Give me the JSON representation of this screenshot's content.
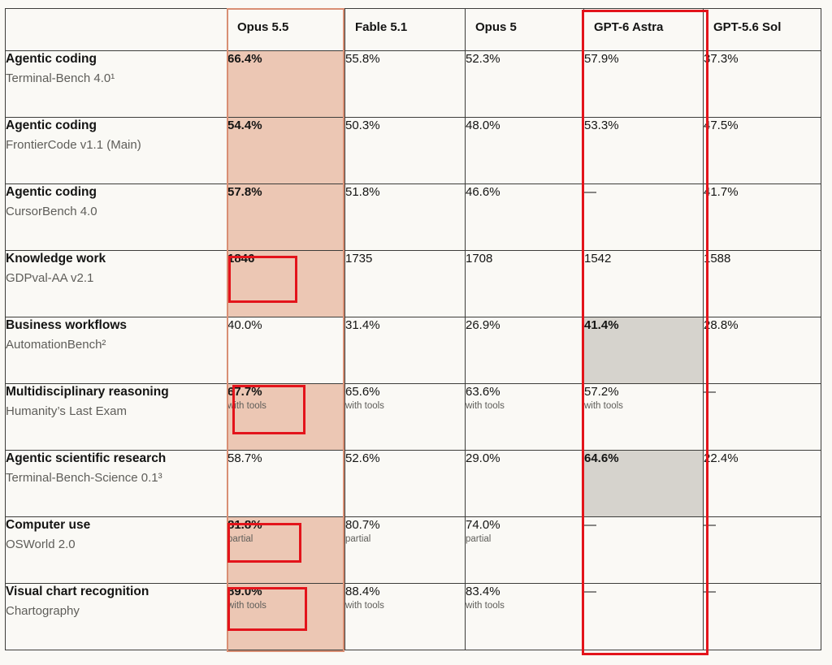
{
  "columns": [
    "Opus 5.5",
    "Fable 5.1",
    "Opus 5",
    "GPT-6 Astra",
    "GPT-5.6 Sol"
  ],
  "rows": [
    {
      "title": "Agentic coding",
      "subtitle": "Terminal-Bench 4.0¹",
      "cells": [
        {
          "value": "66.4%"
        },
        {
          "value": "55.8%"
        },
        {
          "value": "52.3%"
        },
        {
          "value": "57.9%"
        },
        {
          "value": "37.3%"
        }
      ]
    },
    {
      "title": "Agentic coding",
      "subtitle": "FrontierCode v1.1 (Main)",
      "cells": [
        {
          "value": "54.4%"
        },
        {
          "value": "50.3%"
        },
        {
          "value": "48.0%"
        },
        {
          "value": "53.3%"
        },
        {
          "value": "47.5%"
        }
      ]
    },
    {
      "title": "Agentic coding",
      "subtitle": "CursorBench 4.0",
      "cells": [
        {
          "value": "57.8%"
        },
        {
          "value": "51.8%"
        },
        {
          "value": "46.6%"
        },
        {
          "value": "—"
        },
        {
          "value": "41.7%"
        }
      ]
    },
    {
      "title": "Knowledge work",
      "subtitle": "GDPval-AA v2.1",
      "cells": [
        {
          "value": "1846"
        },
        {
          "value": "1735"
        },
        {
          "value": "1708"
        },
        {
          "value": "1542"
        },
        {
          "value": "1588"
        }
      ]
    },
    {
      "title": "Business workflows",
      "subtitle": "AutomationBench²",
      "cells": [
        {
          "value": "40.0%"
        },
        {
          "value": "31.4%"
        },
        {
          "value": "26.9%"
        },
        {
          "value": "41.4%"
        },
        {
          "value": "28.8%"
        }
      ]
    },
    {
      "title": "Multidisciplinary reasoning",
      "subtitle": "Humanity’s Last Exam",
      "cells": [
        {
          "value": "67.7%",
          "note": "with tools"
        },
        {
          "value": "65.6%",
          "note": "with tools"
        },
        {
          "value": "63.6%",
          "note": "with tools"
        },
        {
          "value": "57.2%",
          "note": "with tools"
        },
        {
          "value": "—"
        }
      ]
    },
    {
      "title": "Agentic scientific research",
      "subtitle": "Terminal-Bench-Science 0.1³",
      "cells": [
        {
          "value": "58.7%"
        },
        {
          "value": "52.6%"
        },
        {
          "value": "29.0%"
        },
        {
          "value": "64.6%"
        },
        {
          "value": "22.4%"
        }
      ]
    },
    {
      "title": "Computer use",
      "subtitle": "OSWorld 2.0",
      "cells": [
        {
          "value": "81.8%",
          "note": "partial"
        },
        {
          "value": "80.7%",
          "note": "partial"
        },
        {
          "value": "74.0%",
          "note": "partial"
        },
        {
          "value": "—"
        },
        {
          "value": "—"
        }
      ]
    },
    {
      "title": "Visual chart recognition",
      "subtitle": "Chartography",
      "cells": [
        {
          "value": "89.0%",
          "note": "with tools"
        },
        {
          "value": "88.4%",
          "note": "with tools"
        },
        {
          "value": "83.4%",
          "note": "with tools"
        },
        {
          "value": "—"
        },
        {
          "value": "—"
        }
      ]
    }
  ],
  "colors": {
    "opus_highlight": "#ecc7b4",
    "gray_highlight": "#d6d3cd",
    "annotation_red": "#e3141b",
    "opus_border": "#d98f74"
  }
}
